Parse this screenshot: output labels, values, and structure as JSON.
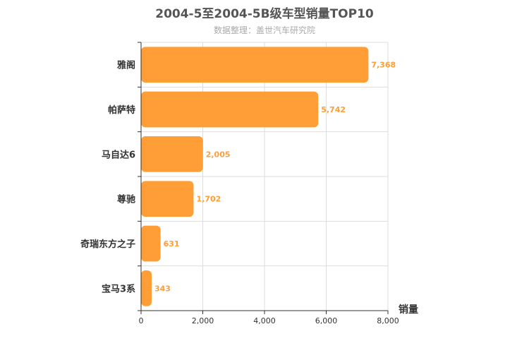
{
  "chart_data": {
    "type": "bar",
    "orientation": "horizontal",
    "title": "2004-5至2004-5B级车型销量TOP10",
    "subtitle": "数据整理：盖世汽车研究院",
    "categories": [
      "雅阁",
      "帕萨特",
      "马自达6",
      "尊驰",
      "奇瑞东方之子",
      "宝马3系"
    ],
    "values": [
      7368,
      5742,
      2005,
      1702,
      631,
      343
    ],
    "value_labels": [
      "7,368",
      "5,742",
      "2,005",
      "1,702",
      "631",
      "343"
    ],
    "xlabel": "销量",
    "ylabel": "",
    "xlim": [
      0,
      8000
    ],
    "xticks": [
      0,
      2000,
      4000,
      6000,
      8000
    ],
    "xtick_labels": [
      "0",
      "2,000",
      "4,000",
      "6,000",
      "8,000"
    ],
    "grid": true,
    "bar_color": "#ff9d36",
    "label_color": "#ff9d36"
  }
}
